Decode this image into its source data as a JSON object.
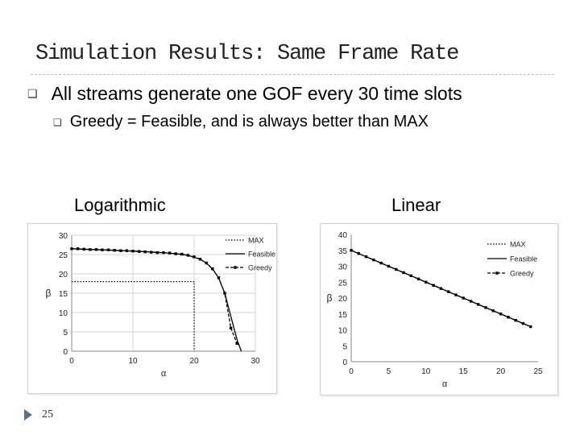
{
  "slide": {
    "title": "Simulation Results: Same Frame Rate",
    "bullets": [
      {
        "text": "All streams generate one GOF every 30 time slots",
        "marker_icon": "square-bullet-icon"
      },
      {
        "text": "Greedy = Feasible, and is always better than MAX",
        "marker_icon": "square-bullet-icon"
      }
    ],
    "labels": {
      "log": "Logarithmic",
      "linear": "Linear"
    },
    "page_number": "25",
    "marker_glyph": "❑"
  },
  "chart_data": [
    {
      "type": "line",
      "title": "",
      "xlabel": "α",
      "ylabel": "β",
      "xlim": [
        0,
        30
      ],
      "ylim": [
        0,
        30
      ],
      "xticks": [
        0,
        10,
        20,
        30
      ],
      "yticks": [
        0,
        5,
        10,
        15,
        20,
        25,
        30
      ],
      "grid": true,
      "legend_position": "top-right",
      "series": [
        {
          "name": "MAX",
          "style": "dotted",
          "color": "#000000",
          "x": [
            0,
            20,
            20
          ],
          "y": [
            18,
            18,
            0
          ]
        },
        {
          "name": "Feasible",
          "style": "solid",
          "color": "#000000",
          "x": [
            0,
            5,
            10,
            15,
            17,
            19,
            21,
            22,
            23,
            24,
            25,
            26,
            27,
            27.7
          ],
          "y": [
            26.5,
            26.2,
            25.9,
            25.5,
            25.2,
            24.8,
            23.8,
            22.8,
            21.3,
            19,
            15,
            9,
            3,
            0
          ]
        },
        {
          "name": "Greedy",
          "style": "dashed-square",
          "color": "#000000",
          "x": [
            0,
            1,
            2,
            3,
            4,
            5,
            6,
            7,
            8,
            9,
            10,
            11,
            12,
            13,
            14,
            15,
            16,
            17,
            18,
            19,
            20,
            21,
            22,
            23,
            24,
            25,
            26,
            27
          ],
          "y": [
            26.5,
            26.5,
            26.4,
            26.3,
            26.3,
            26.2,
            26.2,
            26.1,
            26,
            26,
            25.9,
            25.8,
            25.7,
            25.6,
            25.5,
            25.5,
            25.4,
            25.2,
            25.1,
            24.8,
            24.4,
            23.8,
            22.8,
            21.3,
            19,
            15,
            6,
            2
          ]
        }
      ]
    },
    {
      "type": "line",
      "title": "",
      "xlabel": "α",
      "ylabel": "β",
      "xlim": [
        0,
        25
      ],
      "ylim": [
        0,
        40
      ],
      "xticks": [
        0,
        5,
        10,
        15,
        20,
        25
      ],
      "yticks": [
        0,
        5,
        10,
        15,
        20,
        25,
        30,
        35,
        40
      ],
      "grid": false,
      "legend_position": "top-right",
      "series": [
        {
          "name": "MAX",
          "style": "dotted",
          "color": "#000000",
          "x": [
            0,
            24
          ],
          "y": [
            35,
            11
          ]
        },
        {
          "name": "Feasible",
          "style": "solid",
          "color": "#000000",
          "x": [
            0,
            24
          ],
          "y": [
            35,
            11
          ]
        },
        {
          "name": "Greedy",
          "style": "dashed-square",
          "color": "#000000",
          "x": [
            0,
            1,
            2,
            3,
            4,
            5,
            6,
            7,
            8,
            9,
            10,
            11,
            12,
            13,
            14,
            15,
            16,
            17,
            18,
            19,
            20,
            21,
            22,
            23,
            24
          ],
          "y": [
            35,
            34,
            33,
            32,
            31,
            30,
            29,
            28,
            27,
            26,
            25,
            24,
            23,
            22,
            21,
            20,
            19,
            18,
            17,
            16,
            15,
            14,
            13,
            12,
            11
          ]
        }
      ]
    }
  ]
}
